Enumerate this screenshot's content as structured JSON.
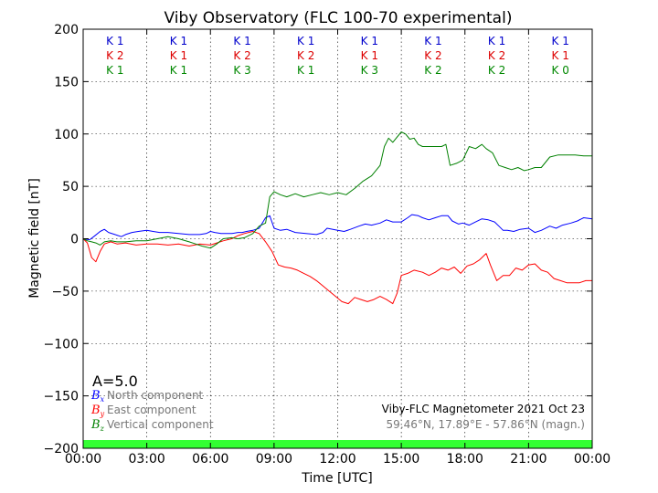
{
  "chart_data": {
    "type": "line",
    "title": "Viby Observatory (FLC 100-70 experimental)",
    "xlabel": "Time [UTC]",
    "ylabel": "Magnetic field [nT]",
    "xlim": [
      0,
      24
    ],
    "ylim": [
      -200,
      200
    ],
    "grid": true,
    "x_ticks": [
      0,
      3,
      6,
      9,
      12,
      15,
      18,
      21,
      24
    ],
    "x_tick_labels": [
      "00:00",
      "03:00",
      "06:00",
      "09:00",
      "12:00",
      "15:00",
      "18:00",
      "21:00",
      "00:00"
    ],
    "y_ticks": [
      -200,
      -150,
      -100,
      -50,
      0,
      50,
      100,
      150,
      200
    ],
    "y_tick_labels": [
      "−200",
      "−150",
      "−100",
      "−50",
      "0",
      "50",
      "100",
      "150",
      "200"
    ],
    "a_index": "A=5.0",
    "k_index": {
      "x": [
        1.5,
        4.5,
        7.5,
        10.5,
        13.5,
        16.5,
        19.5,
        22.5
      ],
      "rows": [
        {
          "color": "#0000cc",
          "values": [
            "K 1",
            "K 1",
            "K 1",
            "K 1",
            "K 1",
            "K 1",
            "K 1",
            "K 1"
          ]
        },
        {
          "color": "#dd0000",
          "values": [
            "K 2",
            "K 1",
            "K 2",
            "K 2",
            "K 1",
            "K 2",
            "K 2",
            "K 1"
          ]
        },
        {
          "color": "#008800",
          "values": [
            "K 1",
            "K 1",
            "K 3",
            "K 1",
            "K 3",
            "K 2",
            "K 2",
            "K 0"
          ]
        }
      ]
    },
    "legend_position": "bottom-left",
    "legend": [
      {
        "symbol": "B",
        "sub": "x",
        "label": "North component",
        "color": "#0000ff"
      },
      {
        "symbol": "B",
        "sub": "y",
        "label": "East component",
        "color": "#ff0000"
      },
      {
        "symbol": "B",
        "sub": "z",
        "label": "Vertical component",
        "color": "#008000"
      }
    ],
    "annotation": {
      "line1": "Viby-FLC Magnetometer 2021 Oct 23",
      "line2": "59.46°N, 17.89°E - 57.86°N (magn.)"
    },
    "series": [
      {
        "color": "#0000ff",
        "x": [
          0,
          0.3,
          0.5,
          0.8,
          1.0,
          1.2,
          1.5,
          1.8,
          2.0,
          2.3,
          2.6,
          3.0,
          3.3,
          3.6,
          4.0,
          4.5,
          5.0,
          5.5,
          5.8,
          6.0,
          6.2,
          6.5,
          7.0,
          7.3,
          7.5,
          7.7,
          8.0,
          8.3,
          8.6,
          8.8,
          9.0,
          9.3,
          9.6,
          10.0,
          10.5,
          11.0,
          11.3,
          11.5,
          12.0,
          12.3,
          12.6,
          13.0,
          13.3,
          13.6,
          14.0,
          14.3,
          14.6,
          15.0,
          15.3,
          15.5,
          15.8,
          16.0,
          16.3,
          16.6,
          16.9,
          17.2,
          17.4,
          17.7,
          17.9,
          18.2,
          18.5,
          18.8,
          19.1,
          19.4,
          19.6,
          19.8,
          20.0,
          20.3,
          20.6,
          21.0,
          21.3,
          21.6,
          22.0,
          22.3,
          22.6,
          23.0,
          23.3,
          23.6,
          24.0
        ],
        "y": [
          0,
          -1,
          2,
          7,
          9,
          6,
          4,
          2,
          4,
          6,
          7,
          8,
          7,
          6,
          6,
          5,
          4,
          4,
          5,
          7,
          6,
          5,
          5,
          6,
          6,
          7,
          8,
          10,
          20,
          22,
          10,
          8,
          9,
          6,
          5,
          4,
          6,
          10,
          8,
          7,
          9,
          12,
          14,
          13,
          15,
          18,
          16,
          16,
          20,
          23,
          22,
          20,
          18,
          20,
          22,
          22,
          17,
          14,
          15,
          13,
          16,
          19,
          18,
          16,
          12,
          8,
          8,
          7,
          9,
          10,
          6,
          8,
          12,
          10,
          13,
          15,
          17,
          20,
          19
        ]
      },
      {
        "color": "#ff0000",
        "x": [
          0,
          0.2,
          0.4,
          0.6,
          0.8,
          1.0,
          1.3,
          1.6,
          2.0,
          2.5,
          3.0,
          3.5,
          4.0,
          4.5,
          5.0,
          5.5,
          6.0,
          6.3,
          6.6,
          7.0,
          7.3,
          7.6,
          8.0,
          8.3,
          8.6,
          8.9,
          9.2,
          9.5,
          9.8,
          10.1,
          10.4,
          10.7,
          11.0,
          11.3,
          11.6,
          11.9,
          12.2,
          12.5,
          12.8,
          13.1,
          13.4,
          13.7,
          14.0,
          14.3,
          14.6,
          14.8,
          15.0,
          15.3,
          15.6,
          16.0,
          16.3,
          16.6,
          16.9,
          17.2,
          17.5,
          17.8,
          18.1,
          18.4,
          18.7,
          19.0,
          19.2,
          19.5,
          19.8,
          20.1,
          20.4,
          20.7,
          21.0,
          21.3,
          21.6,
          21.9,
          22.2,
          22.5,
          22.8,
          23.1,
          23.4,
          23.7,
          24.0
        ],
        "y": [
          0,
          -4,
          -18,
          -22,
          -12,
          -5,
          -3,
          -5,
          -4,
          -6,
          -5,
          -5,
          -6,
          -5,
          -7,
          -5,
          -6,
          -4,
          -2,
          0,
          3,
          5,
          7,
          5,
          -3,
          -12,
          -25,
          -27,
          -28,
          -30,
          -33,
          -36,
          -40,
          -45,
          -50,
          -55,
          -60,
          -62,
          -56,
          -58,
          -60,
          -58,
          -55,
          -58,
          -62,
          -52,
          -35,
          -33,
          -30,
          -32,
          -35,
          -32,
          -28,
          -30,
          -27,
          -33,
          -26,
          -24,
          -20,
          -14,
          -25,
          -40,
          -35,
          -35,
          -28,
          -30,
          -25,
          -24,
          -30,
          -32,
          -38,
          -40,
          -42,
          -42,
          -42,
          -40,
          -40
        ]
      },
      {
        "color": "#008000",
        "x": [
          0,
          0.2,
          0.4,
          0.6,
          0.8,
          1.0,
          1.3,
          1.6,
          2.0,
          2.5,
          3.0,
          3.5,
          4.0,
          4.5,
          5.0,
          5.3,
          5.6,
          6.0,
          6.3,
          6.6,
          7.0,
          7.3,
          7.6,
          8.0,
          8.3,
          8.6,
          8.8,
          9.0,
          9.3,
          9.6,
          10.0,
          10.4,
          10.8,
          11.2,
          11.6,
          12.0,
          12.4,
          12.8,
          13.2,
          13.6,
          14.0,
          14.2,
          14.4,
          14.6,
          15.0,
          15.2,
          15.4,
          15.6,
          15.8,
          16.0,
          16.3,
          16.6,
          16.9,
          17.1,
          17.3,
          17.6,
          17.9,
          18.2,
          18.5,
          18.8,
          19.0,
          19.3,
          19.6,
          19.9,
          20.2,
          20.5,
          20.8,
          21.0,
          21.3,
          21.6,
          22.0,
          22.4,
          22.8,
          23.2,
          23.6,
          24.0
        ],
        "y": [
          0,
          -2,
          -3,
          -4,
          -6,
          -3,
          -2,
          -3,
          -3,
          -2,
          -2,
          0,
          2,
          0,
          -3,
          -5,
          -7,
          -9,
          -5,
          0,
          1,
          0,
          1,
          5,
          12,
          15,
          40,
          45,
          42,
          40,
          43,
          40,
          42,
          44,
          42,
          44,
          42,
          48,
          55,
          60,
          70,
          88,
          96,
          92,
          102,
          100,
          95,
          96,
          90,
          88,
          88,
          88,
          88,
          90,
          70,
          72,
          75,
          88,
          86,
          90,
          86,
          82,
          70,
          68,
          66,
          68,
          65,
          66,
          68,
          68,
          78,
          80,
          80,
          80,
          79,
          79
        ]
      }
    ]
  }
}
